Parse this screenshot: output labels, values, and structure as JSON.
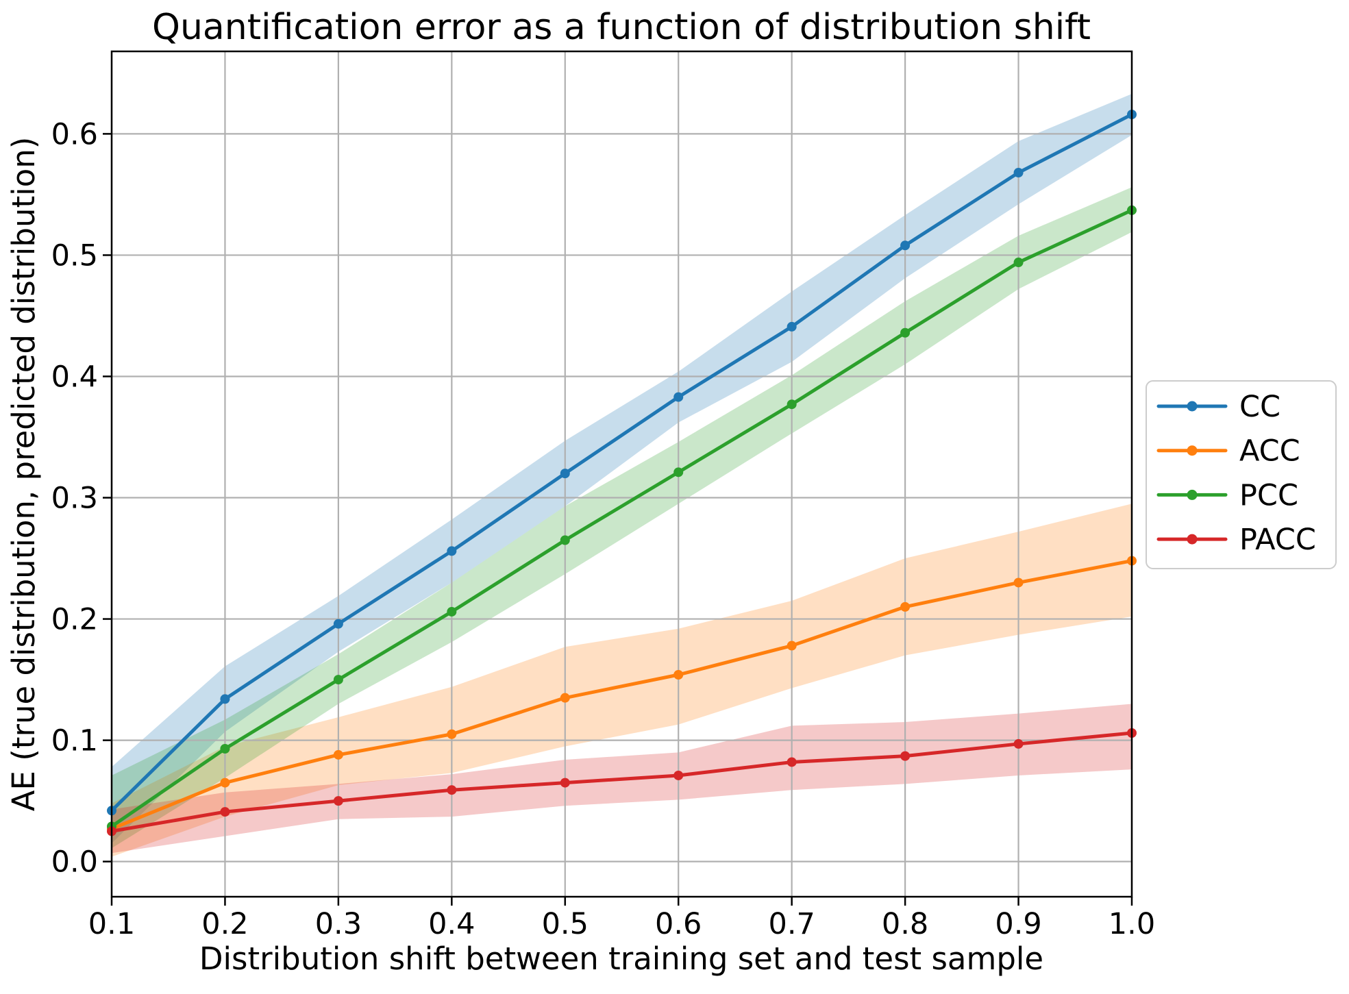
{
  "chart_data": {
    "type": "line",
    "title": "Quantification error as a function of distribution shift",
    "xlabel": "Distribution shift between training set and test sample",
    "ylabel": "AE (true distribution, predicted distribution)",
    "x": [
      0.1,
      0.2,
      0.3,
      0.4,
      0.5,
      0.6,
      0.7,
      0.8,
      0.9,
      1.0
    ],
    "xtick_labels": [
      "0.1",
      "0.2",
      "0.3",
      "0.4",
      "0.5",
      "0.6",
      "0.7",
      "0.8",
      "0.9",
      "1.0"
    ],
    "ytick_values": [
      0.0,
      0.1,
      0.2,
      0.3,
      0.4,
      0.5,
      0.6
    ],
    "ytick_labels": [
      "0.0",
      "0.1",
      "0.2",
      "0.3",
      "0.4",
      "0.5",
      "0.6"
    ],
    "xlim": [
      0.1,
      1.0
    ],
    "ylim": [
      -0.029,
      0.668
    ],
    "grid": true,
    "legend_position": "outside-right",
    "band_alpha": 0.25,
    "series": [
      {
        "name": "CC",
        "color": "#1f77b4",
        "values": [
          0.042,
          0.134,
          0.196,
          0.256,
          0.32,
          0.383,
          0.441,
          0.508,
          0.568,
          0.616
        ],
        "band_lower": [
          0.015,
          0.107,
          0.173,
          0.23,
          0.293,
          0.362,
          0.412,
          0.481,
          0.542,
          0.599
        ],
        "band_upper": [
          0.078,
          0.161,
          0.219,
          0.282,
          0.347,
          0.404,
          0.47,
          0.533,
          0.594,
          0.633
        ]
      },
      {
        "name": "ACC",
        "color": "#ff7f0e",
        "values": [
          0.027,
          0.065,
          0.088,
          0.105,
          0.135,
          0.154,
          0.178,
          0.21,
          0.23,
          0.248
        ],
        "band_lower": [
          0.004,
          0.037,
          0.063,
          0.073,
          0.095,
          0.113,
          0.143,
          0.17,
          0.187,
          0.202
        ],
        "band_upper": [
          0.048,
          0.095,
          0.119,
          0.144,
          0.177,
          0.192,
          0.215,
          0.25,
          0.272,
          0.295
        ]
      },
      {
        "name": "PCC",
        "color": "#2ca02c",
        "values": [
          0.029,
          0.093,
          0.15,
          0.206,
          0.265,
          0.321,
          0.377,
          0.436,
          0.494,
          0.537
        ],
        "band_lower": [
          0.011,
          0.069,
          0.13,
          0.181,
          0.237,
          0.295,
          0.353,
          0.41,
          0.472,
          0.519
        ],
        "band_upper": [
          0.071,
          0.117,
          0.171,
          0.23,
          0.293,
          0.346,
          0.401,
          0.462,
          0.516,
          0.556
        ]
      },
      {
        "name": "PACC",
        "color": "#d62728",
        "values": [
          0.025,
          0.041,
          0.05,
          0.059,
          0.065,
          0.071,
          0.082,
          0.087,
          0.097,
          0.106
        ],
        "band_lower": [
          0.007,
          0.021,
          0.035,
          0.037,
          0.046,
          0.051,
          0.059,
          0.064,
          0.071,
          0.076
        ],
        "band_upper": [
          0.043,
          0.057,
          0.064,
          0.072,
          0.084,
          0.09,
          0.112,
          0.115,
          0.122,
          0.13
        ]
      }
    ],
    "colors": {
      "grid": "#b0b0b0",
      "spine": "#000000",
      "legend_border": "#cccccc",
      "background": "#ffffff",
      "text": "#000000"
    }
  }
}
